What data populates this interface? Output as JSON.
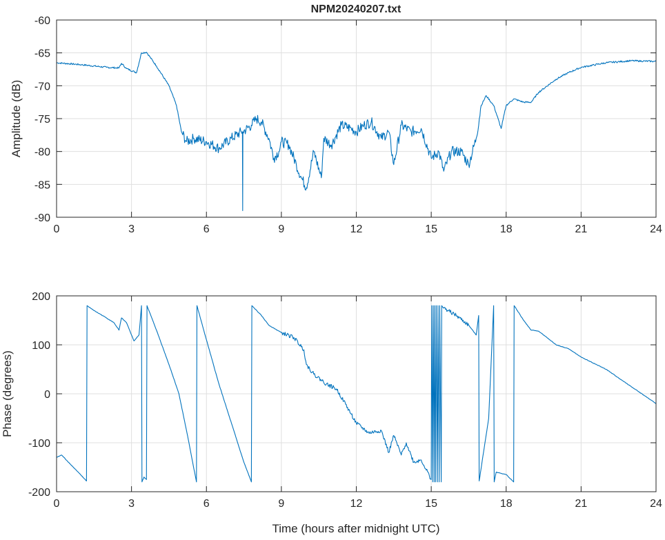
{
  "chart_data": [
    {
      "type": "line",
      "title": "NPM20240207.txt",
      "xlabel": "",
      "ylabel": "Amplitude (dB)",
      "xlim": [
        0,
        24
      ],
      "ylim": [
        -90,
        -60
      ],
      "xticks": [
        0,
        3,
        6,
        9,
        12,
        15,
        18,
        21,
        24
      ],
      "yticks": [
        -60,
        -65,
        -70,
        -75,
        -80,
        -85,
        -90
      ],
      "grid": true,
      "color": "#0072BD",
      "series": [
        {
          "name": "Amplitude",
          "x": [
            0,
            1,
            2,
            2.5,
            2.6,
            2.8,
            3.2,
            3.4,
            3.6,
            4.0,
            4.5,
            4.8,
            5.0,
            5.2,
            5.5,
            6,
            6.5,
            7,
            7.4,
            7.44,
            7.45,
            7.46,
            7.8,
            8.0,
            8.2,
            8.5,
            8.7,
            8.9,
            9,
            9.3,
            9.6,
            9.8,
            10,
            10.3,
            10.6,
            10.7,
            11,
            11.4,
            11.8,
            12,
            12.3,
            12.6,
            13,
            13.3,
            13.5,
            13.8,
            14.2,
            14.6,
            15,
            15.3,
            15.5,
            15.8,
            16.2,
            16.5,
            16.8,
            17.0,
            17.2,
            17.5,
            17.8,
            18.0,
            18.3,
            18.7,
            19,
            19.3,
            20,
            20.5,
            21,
            22,
            23,
            24
          ],
          "y": [
            -66.5,
            -66.8,
            -67.2,
            -67.3,
            -66.6,
            -67.4,
            -68,
            -65,
            -64.9,
            -67,
            -70,
            -73,
            -77,
            -78.5,
            -78,
            -78.5,
            -79.5,
            -78,
            -77,
            -77,
            -89,
            -77,
            -76,
            -75,
            -75.5,
            -78,
            -81,
            -80,
            -78.5,
            -79,
            -82,
            -84,
            -85.5,
            -80,
            -84,
            -78,
            -79,
            -76,
            -76.5,
            -77,
            -76,
            -75.5,
            -78,
            -77,
            -82,
            -76,
            -77,
            -76.5,
            -81,
            -80,
            -83,
            -80,
            -80,
            -82,
            -78,
            -73,
            -71.5,
            -73,
            -76.5,
            -73,
            -72,
            -72.5,
            -72.5,
            -71,
            -69,
            -68,
            -67.2,
            -66.5,
            -66.2,
            -66.3
          ]
        }
      ]
    },
    {
      "type": "line",
      "title": "",
      "xlabel": "Time (hours after midnight UTC)",
      "ylabel": "Phase (degrees)",
      "xlim": [
        0,
        24
      ],
      "ylim": [
        -200,
        200
      ],
      "xticks": [
        0,
        3,
        6,
        9,
        12,
        15,
        18,
        21,
        24
      ],
      "yticks": [
        200,
        100,
        0,
        -100,
        -200
      ],
      "grid": true,
      "color": "#0072BD",
      "series": [
        {
          "name": "Phase",
          "x": [
            0,
            0.2,
            1.2,
            1.22,
            1.5,
            2,
            2.3,
            2.5,
            2.6,
            2.8,
            3.1,
            3.3,
            3.4,
            3.42,
            3.5,
            3.6,
            3.62,
            4,
            4.5,
            4.9,
            5.3,
            5.6,
            5.62,
            6,
            6.5,
            7,
            7.5,
            7.8,
            7.82,
            8.2,
            8.5,
            9,
            9.5,
            9.9,
            10,
            10.3,
            10.8,
            11.2,
            11.5,
            12,
            12.5,
            13,
            13.3,
            13.5,
            13.8,
            14,
            14.3,
            14.6,
            15,
            15.02,
            15.06,
            15.08,
            15.12,
            15.14,
            15.18,
            15.2,
            15.25,
            15.27,
            15.32,
            15.34,
            15.4,
            15.42,
            15.5,
            16,
            16.5,
            16.8,
            16.9,
            16.92,
            17.3,
            17.5,
            17.52,
            17.6,
            18,
            18.3,
            18.32,
            18.7,
            19,
            19.3,
            20,
            20.5,
            21,
            22,
            23,
            24
          ],
          "y": [
            -130,
            -125,
            -178,
            180,
            170,
            155,
            145,
            130,
            155,
            145,
            108,
            120,
            180,
            -180,
            -170,
            -175,
            180,
            130,
            60,
            0,
            -100,
            -180,
            180,
            110,
            20,
            -60,
            -140,
            -180,
            180,
            160,
            140,
            125,
            115,
            90,
            60,
            40,
            20,
            10,
            -15,
            -60,
            -80,
            -75,
            -120,
            -85,
            -125,
            -100,
            -140,
            -135,
            -175,
            180,
            -180,
            180,
            -180,
            180,
            -180,
            180,
            -180,
            180,
            -180,
            180,
            -180,
            180,
            175,
            160,
            140,
            120,
            160,
            -178,
            -50,
            180,
            -180,
            -160,
            -165,
            -180,
            180,
            150,
            130,
            128,
            100,
            92,
            75,
            50,
            15,
            -20
          ]
        }
      ]
    }
  ]
}
